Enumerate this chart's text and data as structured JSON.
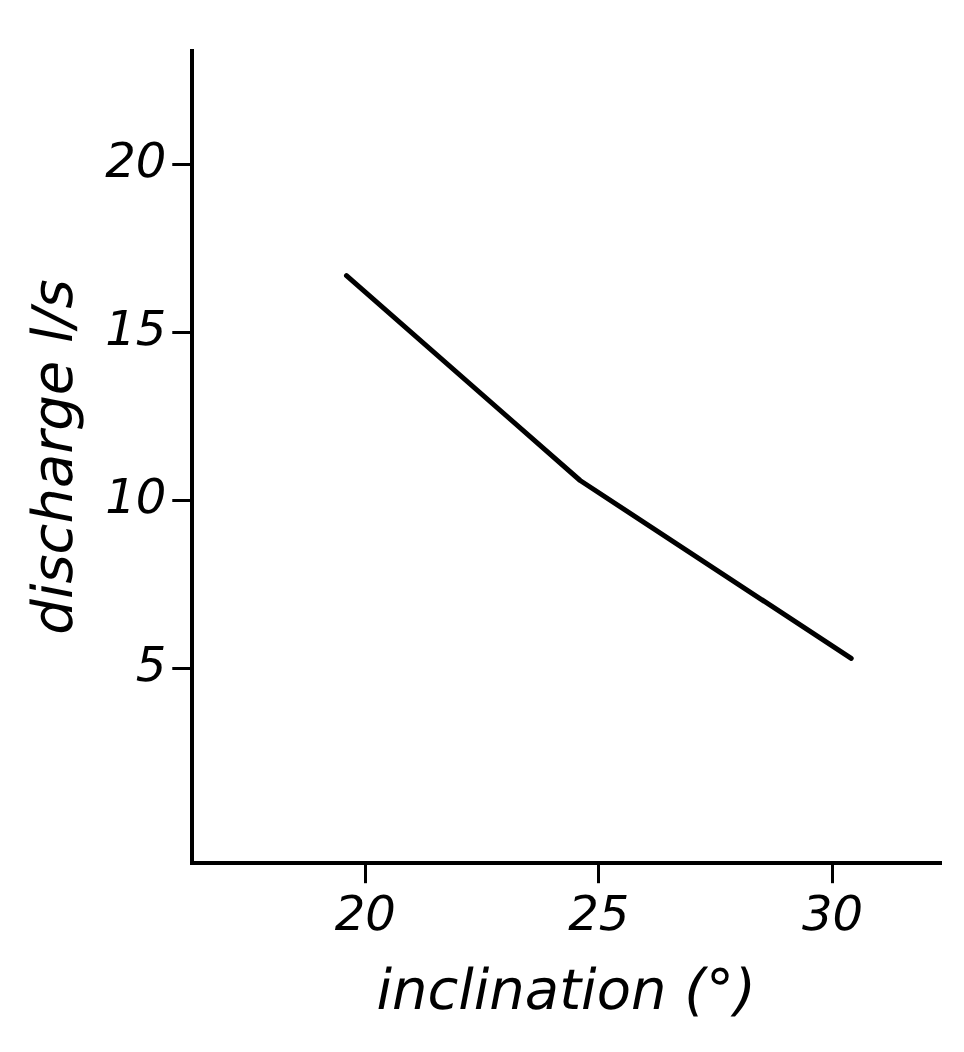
{
  "chart_data": {
    "type": "line",
    "xlabel": "inclination (°)",
    "ylabel": "discharge l/s",
    "x": [
      19.6,
      24.6,
      30.4
    ],
    "series": [
      {
        "color": "#000000",
        "values": [
          16.7,
          10.6,
          5.3
        ]
      }
    ],
    "xlim": [
      16.3,
      32.3
    ],
    "xticks": [
      20,
      25,
      30
    ],
    "ylim": [
      -0.8,
      23.4
    ],
    "yticks": [
      5,
      10,
      15,
      20
    ],
    "grid": false,
    "legend": false,
    "marker": "none",
    "line_style": "solid"
  }
}
